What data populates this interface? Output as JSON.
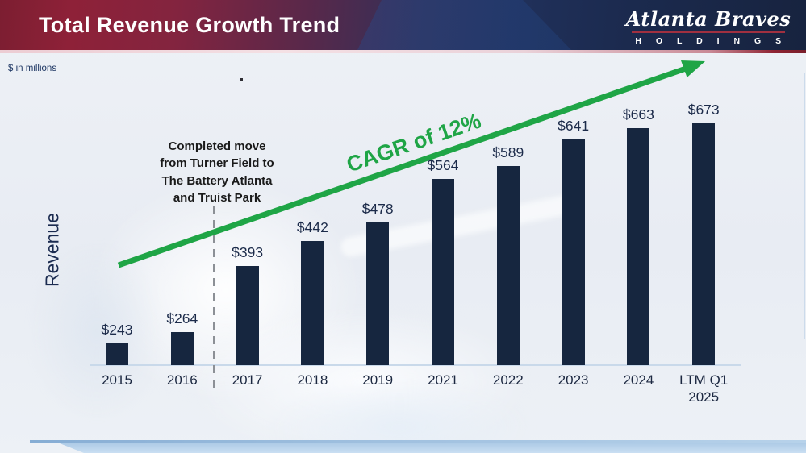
{
  "slide": {
    "title": "Total Revenue Growth Trend",
    "units_note": "$ in millions",
    "logo": {
      "name": "Atlanta Braves",
      "subtitle": "H O L D I N G S"
    }
  },
  "chart_data": {
    "type": "bar",
    "title": "Total Revenue Growth Trend",
    "units": "$ in millions",
    "xlabel": "",
    "ylabel": "Revenue",
    "categories": [
      "2015",
      "2016",
      "2017",
      "2018",
      "2019",
      "2021",
      "2022",
      "2023",
      "2024",
      "LTM Q1\n2025"
    ],
    "values": [
      243,
      264,
      393,
      442,
      478,
      564,
      589,
      641,
      663,
      673
    ],
    "value_labels": [
      "$243",
      "$264",
      "$393",
      "$442",
      "$478",
      "$564",
      "$589",
      "$641",
      "$663",
      "$673"
    ],
    "grid": false,
    "legend": false,
    "axis_display_baseline": 200,
    "annotations": {
      "cagr": "CAGR of 12%",
      "move_note": "Completed move\nfrom Turner Field to\nThe Battery Atlanta\nand Truist Park",
      "divider_between": [
        "2016",
        "2017"
      ]
    }
  },
  "colors": {
    "bar": "#16263f",
    "green_arrow": "#1fa546",
    "banner_maroon": "#8e2138",
    "banner_navy": "#17233f",
    "axis_line": "#c9d9ea",
    "text_navy": "#1c2b4a",
    "bottom_bar": "#aecbe6"
  }
}
